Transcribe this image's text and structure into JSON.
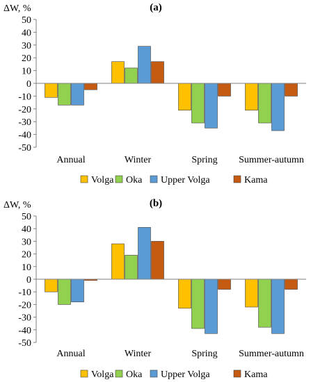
{
  "chart_data": [
    {
      "type": "bar",
      "title": "(a)",
      "ylabel": "ΔW, %",
      "ylim": [
        -50,
        50
      ],
      "yticks": [
        50,
        40,
        30,
        20,
        10,
        0,
        -10,
        -20,
        -30,
        -40,
        -50
      ],
      "categories": [
        "Annual",
        "Winter",
        "Spring",
        "Summer-autumn"
      ],
      "series": [
        {
          "name": "Volga",
          "color": "#FFC000",
          "values": [
            -11,
            17,
            -21,
            -21
          ]
        },
        {
          "name": "Oka",
          "color": "#92D050",
          "values": [
            -17,
            12,
            -31,
            -31
          ]
        },
        {
          "name": "Upper Volga",
          "color": "#5B9BD5",
          "values": [
            -17,
            29,
            -35,
            -37
          ]
        },
        {
          "name": "Kama",
          "color": "#C55A11",
          "values": [
            -5,
            17,
            -10,
            -10
          ]
        }
      ],
      "grid": false,
      "legend": "bottom"
    },
    {
      "type": "bar",
      "title": "(b)",
      "ylabel": "ΔW, %",
      "ylim": [
        -50,
        50
      ],
      "yticks": [
        50,
        40,
        30,
        20,
        10,
        0,
        -10,
        -20,
        -30,
        -40,
        -50
      ],
      "categories": [
        "Annual",
        "Winter",
        "Spring",
        "Summer-autumn"
      ],
      "series": [
        {
          "name": "Volga",
          "color": "#FFC000",
          "values": [
            -10,
            28,
            -23,
            -22
          ]
        },
        {
          "name": "Oka",
          "color": "#92D050",
          "values": [
            -20,
            19,
            -39,
            -38
          ]
        },
        {
          "name": "Upper Volga",
          "color": "#5B9BD5",
          "values": [
            -18,
            41,
            -43,
            -43
          ]
        },
        {
          "name": "Kama",
          "color": "#C55A11",
          "values": [
            -1,
            30,
            -8,
            -8
          ]
        }
      ],
      "grid": false,
      "legend": "bottom"
    }
  ]
}
